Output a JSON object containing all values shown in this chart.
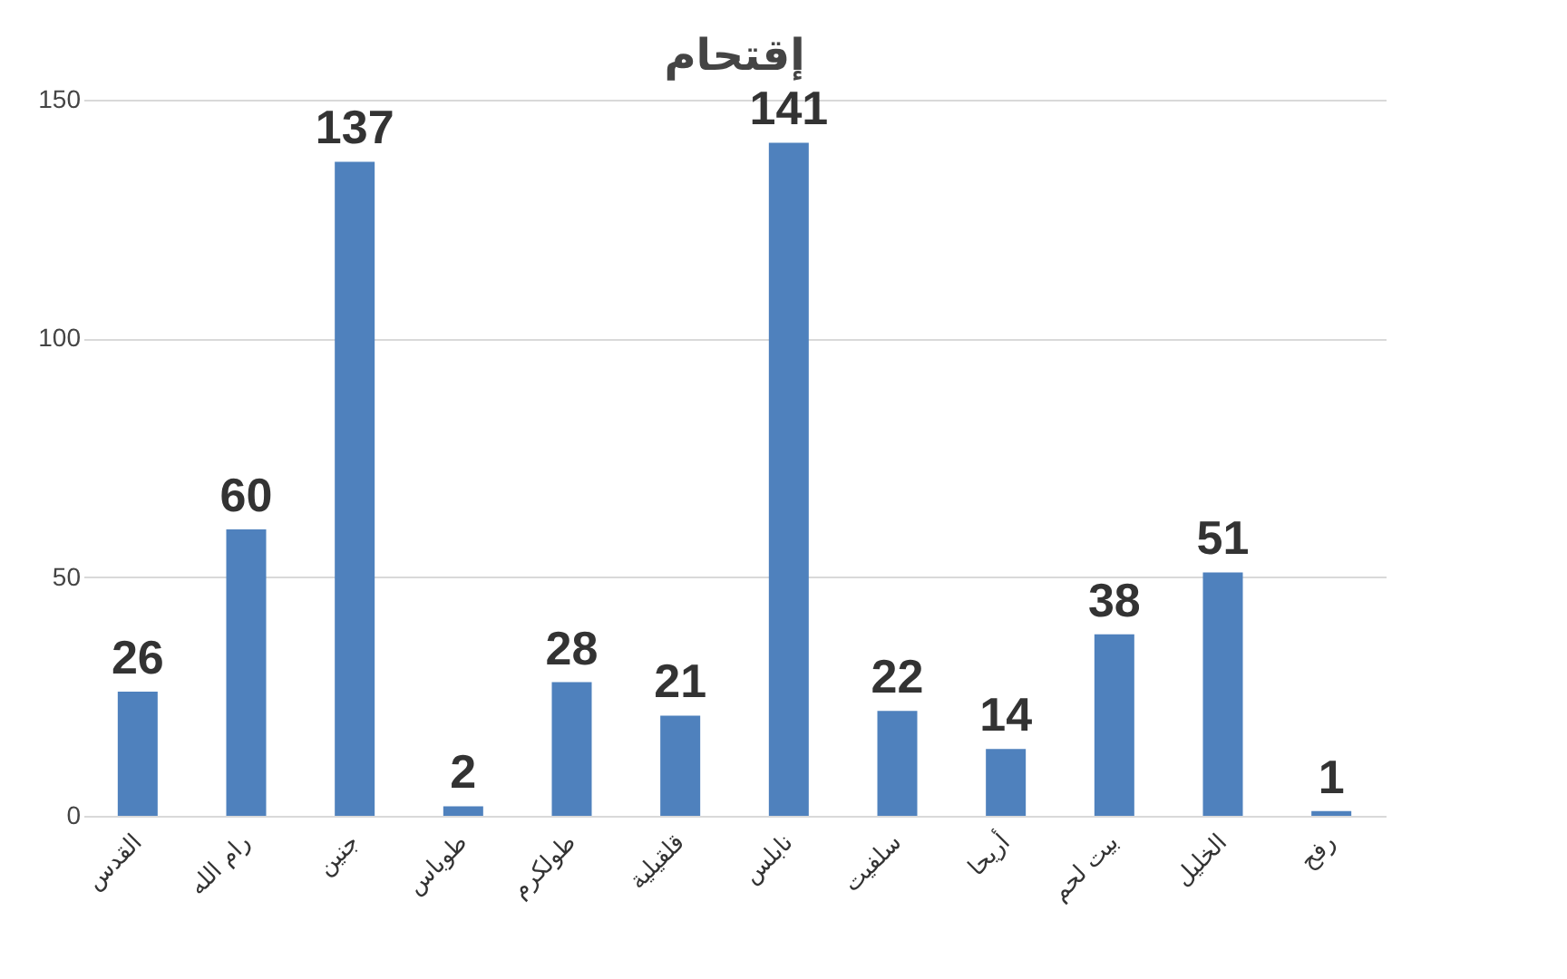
{
  "chart_data": {
    "type": "bar",
    "title": "إقتحام",
    "categories": [
      "القدس",
      "رام الله",
      "جنين",
      "طوباس",
      "طولكرم",
      "قلقيلية",
      "نابلس",
      "سلفيت",
      "أريحا",
      "بيت لحم",
      "الخليل",
      "رفح"
    ],
    "values": [
      26,
      60,
      137,
      2,
      28,
      21,
      141,
      22,
      14,
      38,
      51,
      1
    ],
    "color": "#4f81bd",
    "ylim": [
      0,
      150
    ],
    "yticks": [
      0,
      50,
      100,
      150
    ],
    "grid": "y",
    "data_labels": true
  }
}
